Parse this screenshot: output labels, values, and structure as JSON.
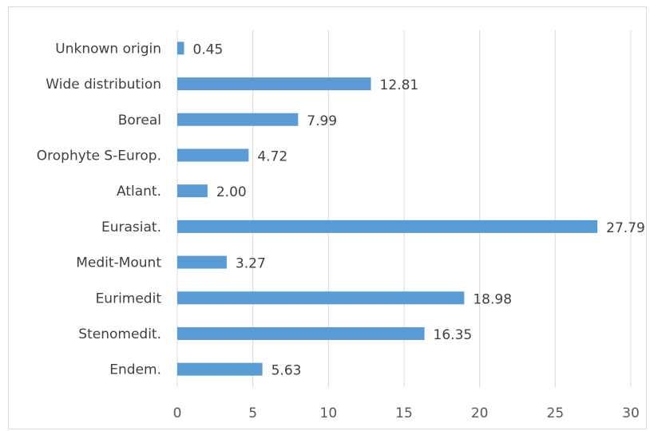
{
  "chart_data": {
    "type": "bar",
    "orientation": "horizontal",
    "title": "",
    "xlabel": "",
    "ylabel": "",
    "categories": [
      "Unknown origin",
      "Wide distribution",
      "Boreal",
      "Orophyte S-Europ.",
      "Atlant.",
      "Eurasiat.",
      "Medit-Mount",
      "Eurimedit",
      "Stenomedit.",
      "Endem."
    ],
    "values": [
      0.45,
      12.81,
      7.99,
      4.72,
      2.0,
      27.79,
      3.27,
      18.98,
      16.35,
      5.63
    ],
    "value_labels": [
      "0.45",
      "12.81",
      "7.99",
      "4.72",
      "2.00",
      "27.79",
      "3.27",
      "18.98",
      "16.35",
      "5.63"
    ],
    "xlim": [
      0,
      30
    ],
    "xticks": [
      "0",
      "5",
      "10",
      "15",
      "20",
      "25",
      "30"
    ],
    "grid": "vertical",
    "legend": "none",
    "bar_color": "#5b9bd5",
    "grid_color": "#d9d9d9"
  }
}
